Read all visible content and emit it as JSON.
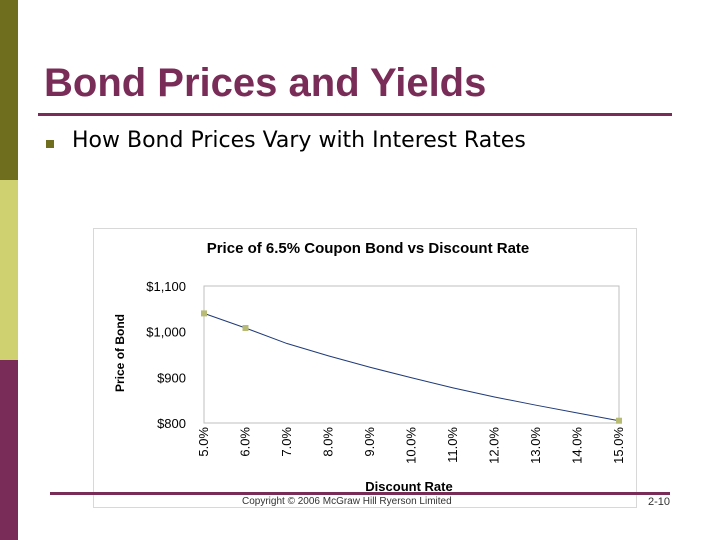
{
  "slide": {
    "title": "Bond Prices and Yields",
    "bullet": "How Bond Prices Vary with Interest Rates",
    "copyright": "Copyright © 2006 McGraw Hill Ryerson Limited",
    "page_number": "2-10"
  },
  "colors": {
    "title": "#7a2c58",
    "rule": "#7a2c58",
    "sidebar_top": "#6e6e1e",
    "sidebar_mid": "#cfd070",
    "sidebar_bottom": "#7a2c58",
    "bullet": "#6e6e1e",
    "series_line": "#1f3a78",
    "marker": "#b8bb74"
  },
  "chart_data": {
    "type": "line",
    "title": "Price of 6.5% Coupon Bond vs Discount Rate",
    "xlabel": "Discount Rate",
    "ylabel": "Price of Bond",
    "categories": [
      "5.0%",
      "6.0%",
      "7.0%",
      "8.0%",
      "9.0%",
      "10.0%",
      "11.0%",
      "12.0%",
      "13.0%",
      "14.0%",
      "15.0%"
    ],
    "x": [
      5,
      6,
      7,
      8,
      9,
      10,
      11,
      12,
      13,
      14,
      15
    ],
    "y_ticks": [
      "$1,100",
      "$1,000",
      "$900",
      "$800"
    ],
    "y_tick_values": [
      1100,
      1000,
      900,
      800
    ],
    "ylim": [
      800,
      1100
    ],
    "series": [
      {
        "values": [
          1040,
          1008,
          974,
          947,
          922,
          899,
          877,
          857,
          839,
          822,
          805
        ]
      }
    ],
    "markers_at_index": [
      0,
      1,
      10
    ],
    "grid": false,
    "legend": "none"
  }
}
